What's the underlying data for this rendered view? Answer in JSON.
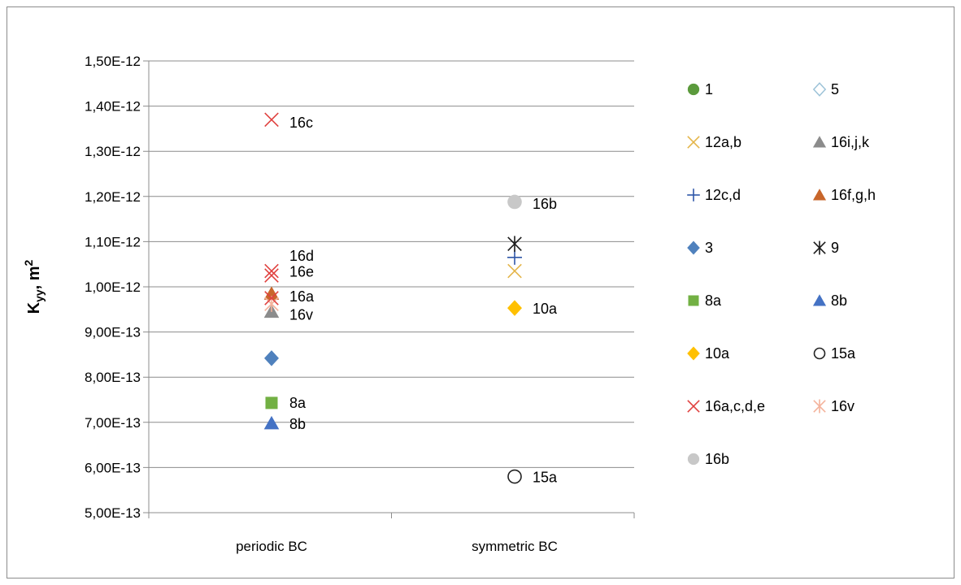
{
  "chart_data": {
    "type": "scatter",
    "ylabel_main": "K",
    "ylabel_sub": "yy",
    "ylabel_rest": ", m",
    "ylabel_sup": "2",
    "xlabel": "",
    "categories": [
      "periodic BC",
      "symmetric BC"
    ],
    "ylim": [
      5e-13,
      1.5e-12
    ],
    "y_ticks": [
      "1,50E-12",
      "1,40E-12",
      "1,30E-12",
      "1,20E-12",
      "1,10E-12",
      "1,00E-12",
      "9,00E-13",
      "8,00E-13",
      "7,00E-13",
      "6,00E-13",
      "5,00E-13"
    ],
    "y_tick_values": [
      1.5e-12,
      1.4e-12,
      1.3e-12,
      1.2e-12,
      1.1e-12,
      1e-12,
      9e-13,
      8e-13,
      7e-13,
      6e-13,
      5e-13
    ],
    "grid": true,
    "legend_position": "right",
    "series": [
      {
        "name": "1",
        "marker": "circle",
        "color": "#5b9a3c",
        "values": [
          null,
          null
        ]
      },
      {
        "name": "5",
        "marker": "diamond-open",
        "color": "#9dc3d8",
        "values": [
          null,
          null
        ]
      },
      {
        "name": "12a,b",
        "marker": "x",
        "color": "#e4b54a",
        "values": [
          null,
          1.035e-12
        ]
      },
      {
        "name": "16i,j,k",
        "marker": "triangle",
        "color": "#8c8c8c",
        "values": [
          9.45e-13,
          null
        ]
      },
      {
        "name": "12c,d",
        "marker": "plus",
        "color": "#2f57a8",
        "values": [
          null,
          1.065e-12
        ]
      },
      {
        "name": "16f,g,h",
        "marker": "triangle",
        "color": "#c8662b",
        "values": [
          9.85e-13,
          null
        ]
      },
      {
        "name": "3",
        "marker": "diamond",
        "color": "#4f81bd",
        "values": [
          8.42e-13,
          null
        ]
      },
      {
        "name": "9",
        "marker": "star",
        "color": "#1a1a1a",
        "values": [
          null,
          1.095e-12
        ]
      },
      {
        "name": "8a",
        "marker": "square",
        "color": "#72b043",
        "values": [
          7.43e-13,
          null
        ]
      },
      {
        "name": "8b",
        "marker": "triangle",
        "color": "#4472c4",
        "values": [
          6.98e-13,
          null
        ]
      },
      {
        "name": "10a",
        "marker": "diamond",
        "color": "#ffc000",
        "values": [
          null,
          9.53e-13
        ]
      },
      {
        "name": "15a",
        "marker": "circle-open",
        "color": "#222222",
        "values": [
          null,
          5.8e-13
        ]
      },
      {
        "name": "16a,c,d,e",
        "marker": "x",
        "color": "#e0413f",
        "values": [
          1.37e-12,
          null
        ]
      },
      {
        "name": "16v",
        "marker": "star",
        "color": "#f4b29b",
        "values": [
          9.62e-13,
          null
        ]
      },
      {
        "name": "16b",
        "marker": "circle",
        "color": "#c8c8c8",
        "values": [
          null,
          1.188e-12
        ]
      }
    ],
    "extra_points": [
      {
        "series": "16a,c,d,e",
        "category": 0,
        "value": 1.035e-12
      },
      {
        "series": "16a,c,d,e",
        "category": 0,
        "value": 1.025e-12
      },
      {
        "series": "16a,c,d,e",
        "category": 0,
        "value": 9.75e-13
      }
    ],
    "annotations": [
      {
        "text": "16c",
        "category": 0,
        "value": 1.365e-12
      },
      {
        "text": "16d",
        "category": 0,
        "value": 1.07e-12
      },
      {
        "text": "16e",
        "category": 0,
        "value": 1.035e-12
      },
      {
        "text": "16a",
        "category": 0,
        "value": 9.8e-13
      },
      {
        "text": "16v",
        "category": 0,
        "value": 9.4e-13
      },
      {
        "text": "8a",
        "category": 0,
        "value": 7.45e-13
      },
      {
        "text": "8b",
        "category": 0,
        "value": 6.98e-13
      },
      {
        "text": "16b",
        "category": 1,
        "value": 1.185e-12
      },
      {
        "text": "10a",
        "category": 1,
        "value": 9.53e-13
      },
      {
        "text": "15a",
        "category": 1,
        "value": 5.8e-13
      }
    ]
  }
}
